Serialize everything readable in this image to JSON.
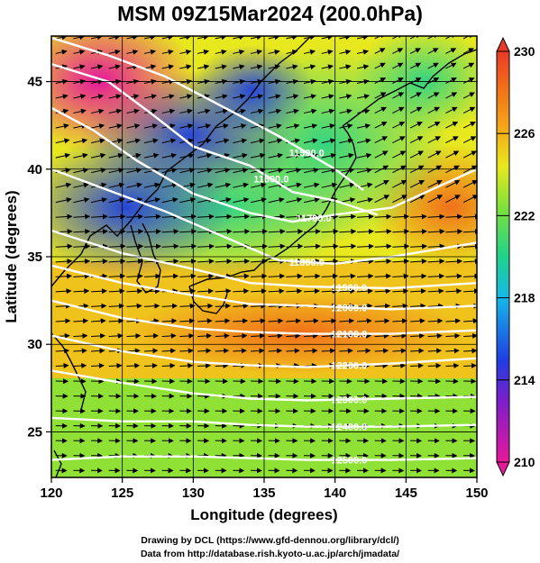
{
  "title": "MSM 09Z15Mar2024 (200.0hPa)",
  "credits": {
    "line1": "Drawing by DCL (https://www.gfd-dennou.org/library/dcl/)",
    "line2": "Data from http://database.rish.kyoto-u.ac.jp/arch/jmadata/"
  },
  "chart_data": {
    "type": "heatmap",
    "title": "MSM 09Z15Mar2024 (200.0hPa)",
    "xlabel": "Longitude (degrees)",
    "ylabel": "Latitude  (degrees)",
    "xlim": [
      120,
      150
    ],
    "ylim": [
      22.4,
      47.6
    ],
    "x_ticks": [
      "120",
      "125",
      "130",
      "135",
      "140",
      "145",
      "150"
    ],
    "y_ticks": [
      "25",
      "30",
      "35",
      "40",
      "45"
    ],
    "grid": true,
    "colorbar": {
      "min": 210,
      "max": 230,
      "ticks": [
        "230",
        "226",
        "222",
        "218",
        "214",
        "210"
      ],
      "colors": [
        "#e6199b",
        "#7b1fc9",
        "#1f3fe0",
        "#18b7e8",
        "#20d28c",
        "#7fe03a",
        "#e8e81f",
        "#f5a31a",
        "#f06a1a",
        "#e83a2a"
      ]
    },
    "contours": [
      {
        "label": "11500.0",
        "points": [
          [
            120,
            47.5
          ],
          [
            124,
            46.5
          ],
          [
            128,
            45.3
          ],
          [
            132,
            43.6
          ],
          [
            136,
            41.9
          ],
          [
            140,
            40.0
          ],
          [
            142,
            38.8
          ]
        ]
      },
      {
        "label": "11600.0",
        "points": [
          [
            120,
            46.0
          ],
          [
            124,
            45.0
          ],
          [
            127,
            43.2
          ],
          [
            130,
            41.3
          ],
          [
            134,
            40.2
          ],
          [
            137,
            38.7
          ],
          [
            140,
            38.2
          ],
          [
            143,
            37.4
          ]
        ]
      },
      {
        "label": "11700.0",
        "points": [
          [
            120,
            43.5
          ],
          [
            123,
            42.2
          ],
          [
            126,
            40.5
          ],
          [
            130,
            38.6
          ],
          [
            134,
            37.5
          ],
          [
            137,
            37.0
          ],
          [
            140,
            37.4
          ],
          [
            144,
            37.8
          ],
          [
            150,
            40.0
          ]
        ]
      },
      {
        "label": "11800.0",
        "points": [
          [
            120,
            40.0
          ],
          [
            124,
            38.8
          ],
          [
            128,
            37.6
          ],
          [
            132,
            36.2
          ],
          [
            136,
            34.8
          ],
          [
            140,
            34.6
          ],
          [
            144,
            35.0
          ],
          [
            150,
            35.8
          ]
        ]
      },
      {
        "label": "11900.0",
        "points": [
          [
            120,
            36.5
          ],
          [
            125,
            35.2
          ],
          [
            130,
            34.3
          ],
          [
            134,
            33.5
          ],
          [
            138,
            33.3
          ],
          [
            144,
            33.2
          ],
          [
            150,
            33.5
          ]
        ]
      },
      {
        "label": "12000.0",
        "points": [
          [
            120,
            34.5
          ],
          [
            125,
            33.5
          ],
          [
            130,
            32.8
          ],
          [
            134,
            32.3
          ],
          [
            138,
            32.2
          ],
          [
            144,
            32.0
          ],
          [
            150,
            32.2
          ]
        ]
      },
      {
        "label": "12100.0",
        "points": [
          [
            120,
            32.5
          ],
          [
            125,
            31.5
          ],
          [
            130,
            30.9
          ],
          [
            134,
            30.7
          ],
          [
            138,
            30.6
          ],
          [
            144,
            30.6
          ],
          [
            150,
            30.8
          ]
        ]
      },
      {
        "label": "12200.0",
        "points": [
          [
            120,
            30.5
          ],
          [
            125,
            29.6
          ],
          [
            130,
            29.0
          ],
          [
            134,
            28.8
          ],
          [
            138,
            28.7
          ],
          [
            144,
            28.9
          ],
          [
            150,
            29.2
          ]
        ]
      },
      {
        "label": "12300.0",
        "points": [
          [
            120,
            28.5
          ],
          [
            125,
            27.8
          ],
          [
            130,
            27.2
          ],
          [
            134,
            26.9
          ],
          [
            138,
            26.8
          ],
          [
            144,
            26.9
          ],
          [
            150,
            27.0
          ]
        ]
      },
      {
        "label": "12400.0",
        "points": [
          [
            120,
            25.8
          ],
          [
            125,
            25.6
          ],
          [
            130,
            25.6
          ],
          [
            134,
            25.4
          ],
          [
            138,
            25.3
          ],
          [
            144,
            25.3
          ],
          [
            150,
            25.4
          ]
        ]
      },
      {
        "label": "12500.0",
        "points": [
          [
            120,
            23.4
          ],
          [
            125,
            23.6
          ],
          [
            130,
            23.6
          ],
          [
            134,
            23.5
          ],
          [
            138,
            23.4
          ],
          [
            144,
            23.4
          ],
          [
            150,
            23.5
          ]
        ]
      }
    ]
  }
}
